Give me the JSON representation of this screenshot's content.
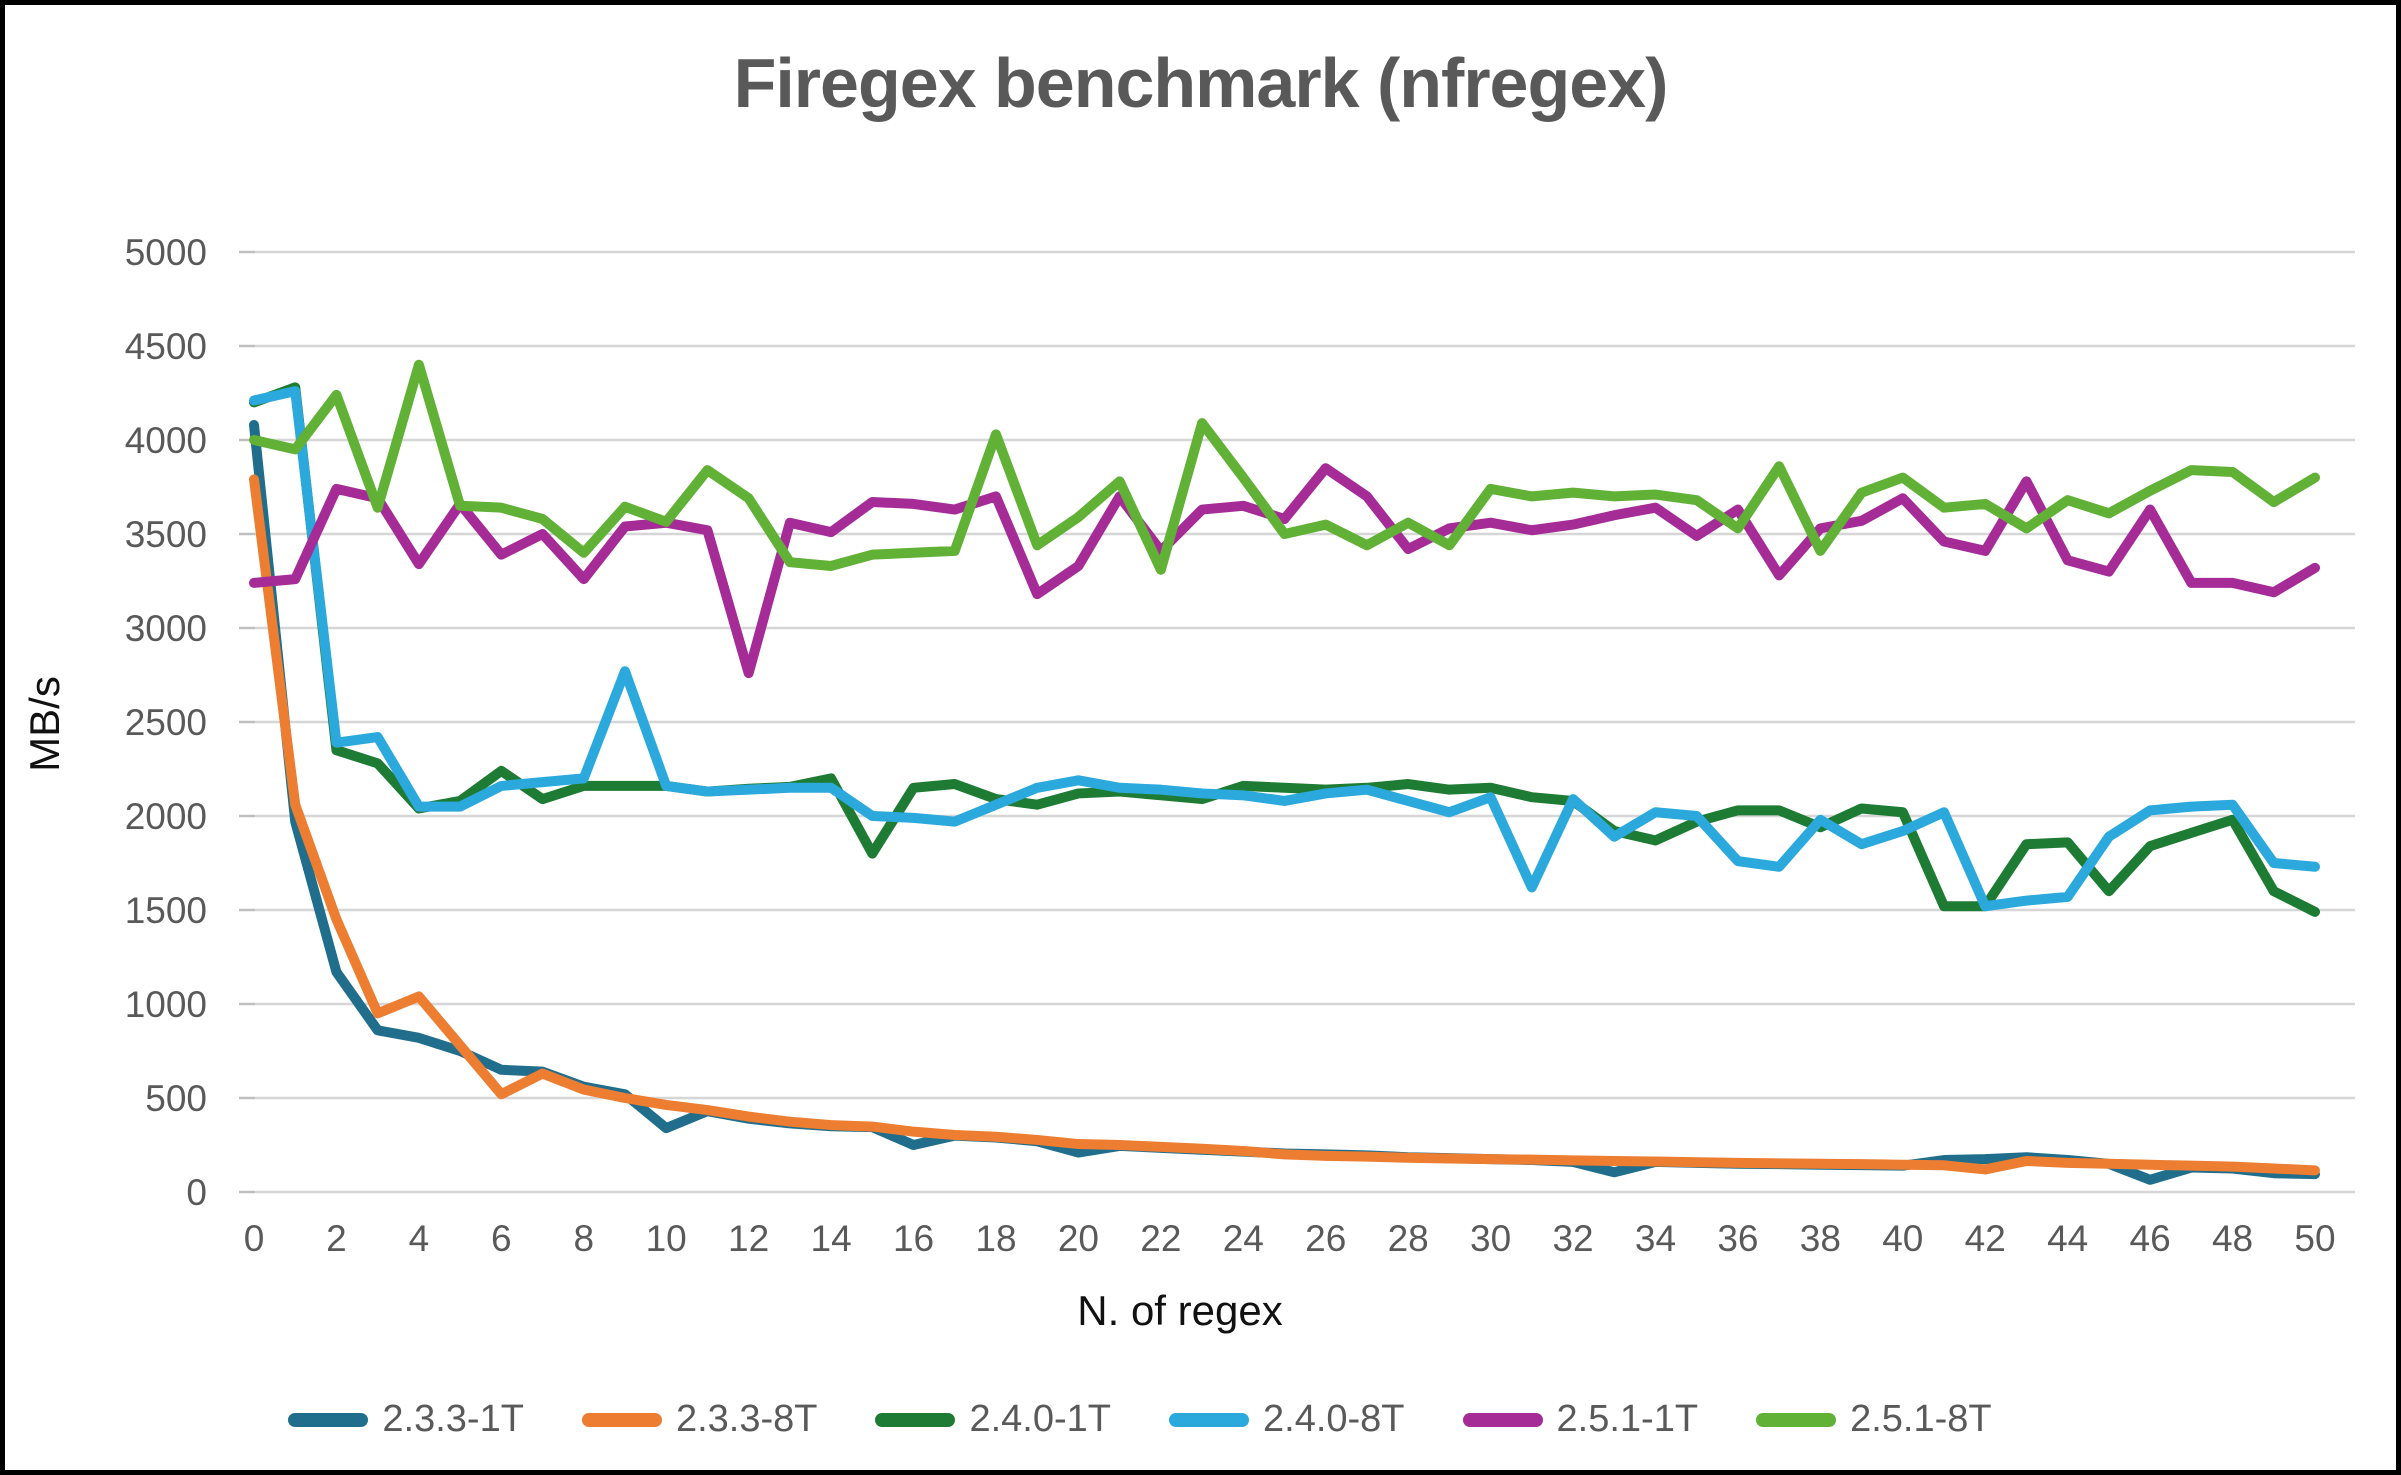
{
  "chart_data": {
    "type": "line",
    "title": "Firegex benchmark (nfregex)",
    "xlabel": "N. of regex",
    "ylabel": "MB/s",
    "grid": true,
    "legend_position": "bottom",
    "x_axis": {
      "min": 0,
      "max": 50,
      "tick_step": 2
    },
    "y_axis": {
      "min": 0,
      "max": 5000,
      "step": 500
    },
    "style": {
      "grid_color": "#D6D6D6",
      "tick_color": "#BFBFBF",
      "text_color": "#595959",
      "title_color": "#595959",
      "background": "#FFFFFF",
      "frame_border": "#000000"
    },
    "x": [
      0,
      1,
      2,
      3,
      4,
      5,
      6,
      7,
      8,
      9,
      10,
      11,
      12,
      13,
      14,
      15,
      16,
      17,
      18,
      19,
      20,
      21,
      22,
      23,
      24,
      25,
      26,
      27,
      28,
      29,
      30,
      31,
      32,
      33,
      34,
      35,
      36,
      37,
      38,
      39,
      40,
      41,
      42,
      43,
      44,
      45,
      46,
      47,
      48,
      49,
      50
    ],
    "series": [
      {
        "name": "2.3.3-1T",
        "color": "#206E8B",
        "values": [
          4080,
          1970,
          1170,
          860,
          820,
          750,
          650,
          640,
          560,
          520,
          340,
          430,
          390,
          365,
          350,
          345,
          250,
          300,
          290,
          270,
          210,
          245,
          235,
          225,
          215,
          205,
          200,
          195,
          185,
          180,
          175,
          170,
          160,
          105,
          160,
          155,
          150,
          148,
          145,
          143,
          140,
          170,
          175,
          185,
          170,
          150,
          65,
          130,
          125,
          100,
          95
        ]
      },
      {
        "name": "2.3.3-8T",
        "color": "#EC7D31",
        "values": [
          3790,
          2060,
          1450,
          950,
          1040,
          780,
          520,
          630,
          545,
          500,
          463,
          436,
          401,
          374,
          356,
          348,
          321,
          303,
          294,
          277,
          255,
          250,
          240,
          230,
          218,
          200,
          192,
          188,
          182,
          178,
          175,
          172,
          168,
          165,
          162,
          158,
          155,
          152,
          150,
          148,
          145,
          142,
          120,
          165,
          155,
          150,
          145,
          140,
          135,
          125,
          115
        ]
      },
      {
        "name": "2.4.0-1T",
        "color": "#1E7B34",
        "values": [
          4200,
          4280,
          2350,
          2280,
          2040,
          2080,
          2240,
          2090,
          2160,
          2160,
          2160,
          2130,
          2145,
          2155,
          2200,
          1800,
          2150,
          2170,
          2090,
          2060,
          2120,
          2130,
          2110,
          2090,
          2160,
          2150,
          2140,
          2150,
          2170,
          2140,
          2150,
          2100,
          2080,
          1920,
          1870,
          1970,
          2030,
          2030,
          1940,
          2040,
          2020,
          1520,
          1520,
          1850,
          1860,
          1600,
          1840,
          1910,
          1980,
          1600,
          1490
        ]
      },
      {
        "name": "2.4.0-8T",
        "color": "#2BA9DD",
        "values": [
          4210,
          4260,
          2390,
          2420,
          2050,
          2050,
          2160,
          2180,
          2200,
          2770,
          2160,
          2130,
          2140,
          2150,
          2150,
          2000,
          1990,
          1970,
          2060,
          2150,
          2190,
          2150,
          2140,
          2120,
          2110,
          2080,
          2120,
          2140,
          2080,
          2020,
          2100,
          1620,
          2090,
          1890,
          2020,
          2000,
          1760,
          1730,
          1980,
          1850,
          1920,
          2020,
          1520,
          1550,
          1570,
          1890,
          2030,
          2050,
          2060,
          1750,
          1730
        ]
      },
      {
        "name": "2.5.1-1T",
        "color": "#A52C97",
        "values": [
          3240,
          3260,
          3740,
          3690,
          3340,
          3660,
          3390,
          3500,
          3260,
          3540,
          3560,
          3520,
          2760,
          3560,
          3510,
          3670,
          3660,
          3630,
          3700,
          3180,
          3330,
          3700,
          3410,
          3630,
          3650,
          3580,
          3850,
          3700,
          3420,
          3530,
          3560,
          3520,
          3550,
          3600,
          3640,
          3490,
          3630,
          3280,
          3530,
          3570,
          3690,
          3460,
          3410,
          3780,
          3360,
          3300,
          3630,
          3240,
          3240,
          3190,
          3320
        ]
      },
      {
        "name": "2.5.1-8T",
        "color": "#60B135",
        "values": [
          4000,
          3950,
          4240,
          3640,
          4400,
          3650,
          3640,
          3580,
          3400,
          3645,
          3565,
          3840,
          3690,
          3350,
          3330,
          3390,
          3400,
          3410,
          4030,
          3440,
          3590,
          3780,
          3310,
          4090,
          3800,
          3500,
          3550,
          3440,
          3560,
          3440,
          3740,
          3700,
          3720,
          3700,
          3710,
          3680,
          3530,
          3860,
          3410,
          3720,
          3800,
          3640,
          3660,
          3530,
          3680,
          3610,
          3730,
          3840,
          3830,
          3670,
          3800
        ]
      }
    ]
  }
}
